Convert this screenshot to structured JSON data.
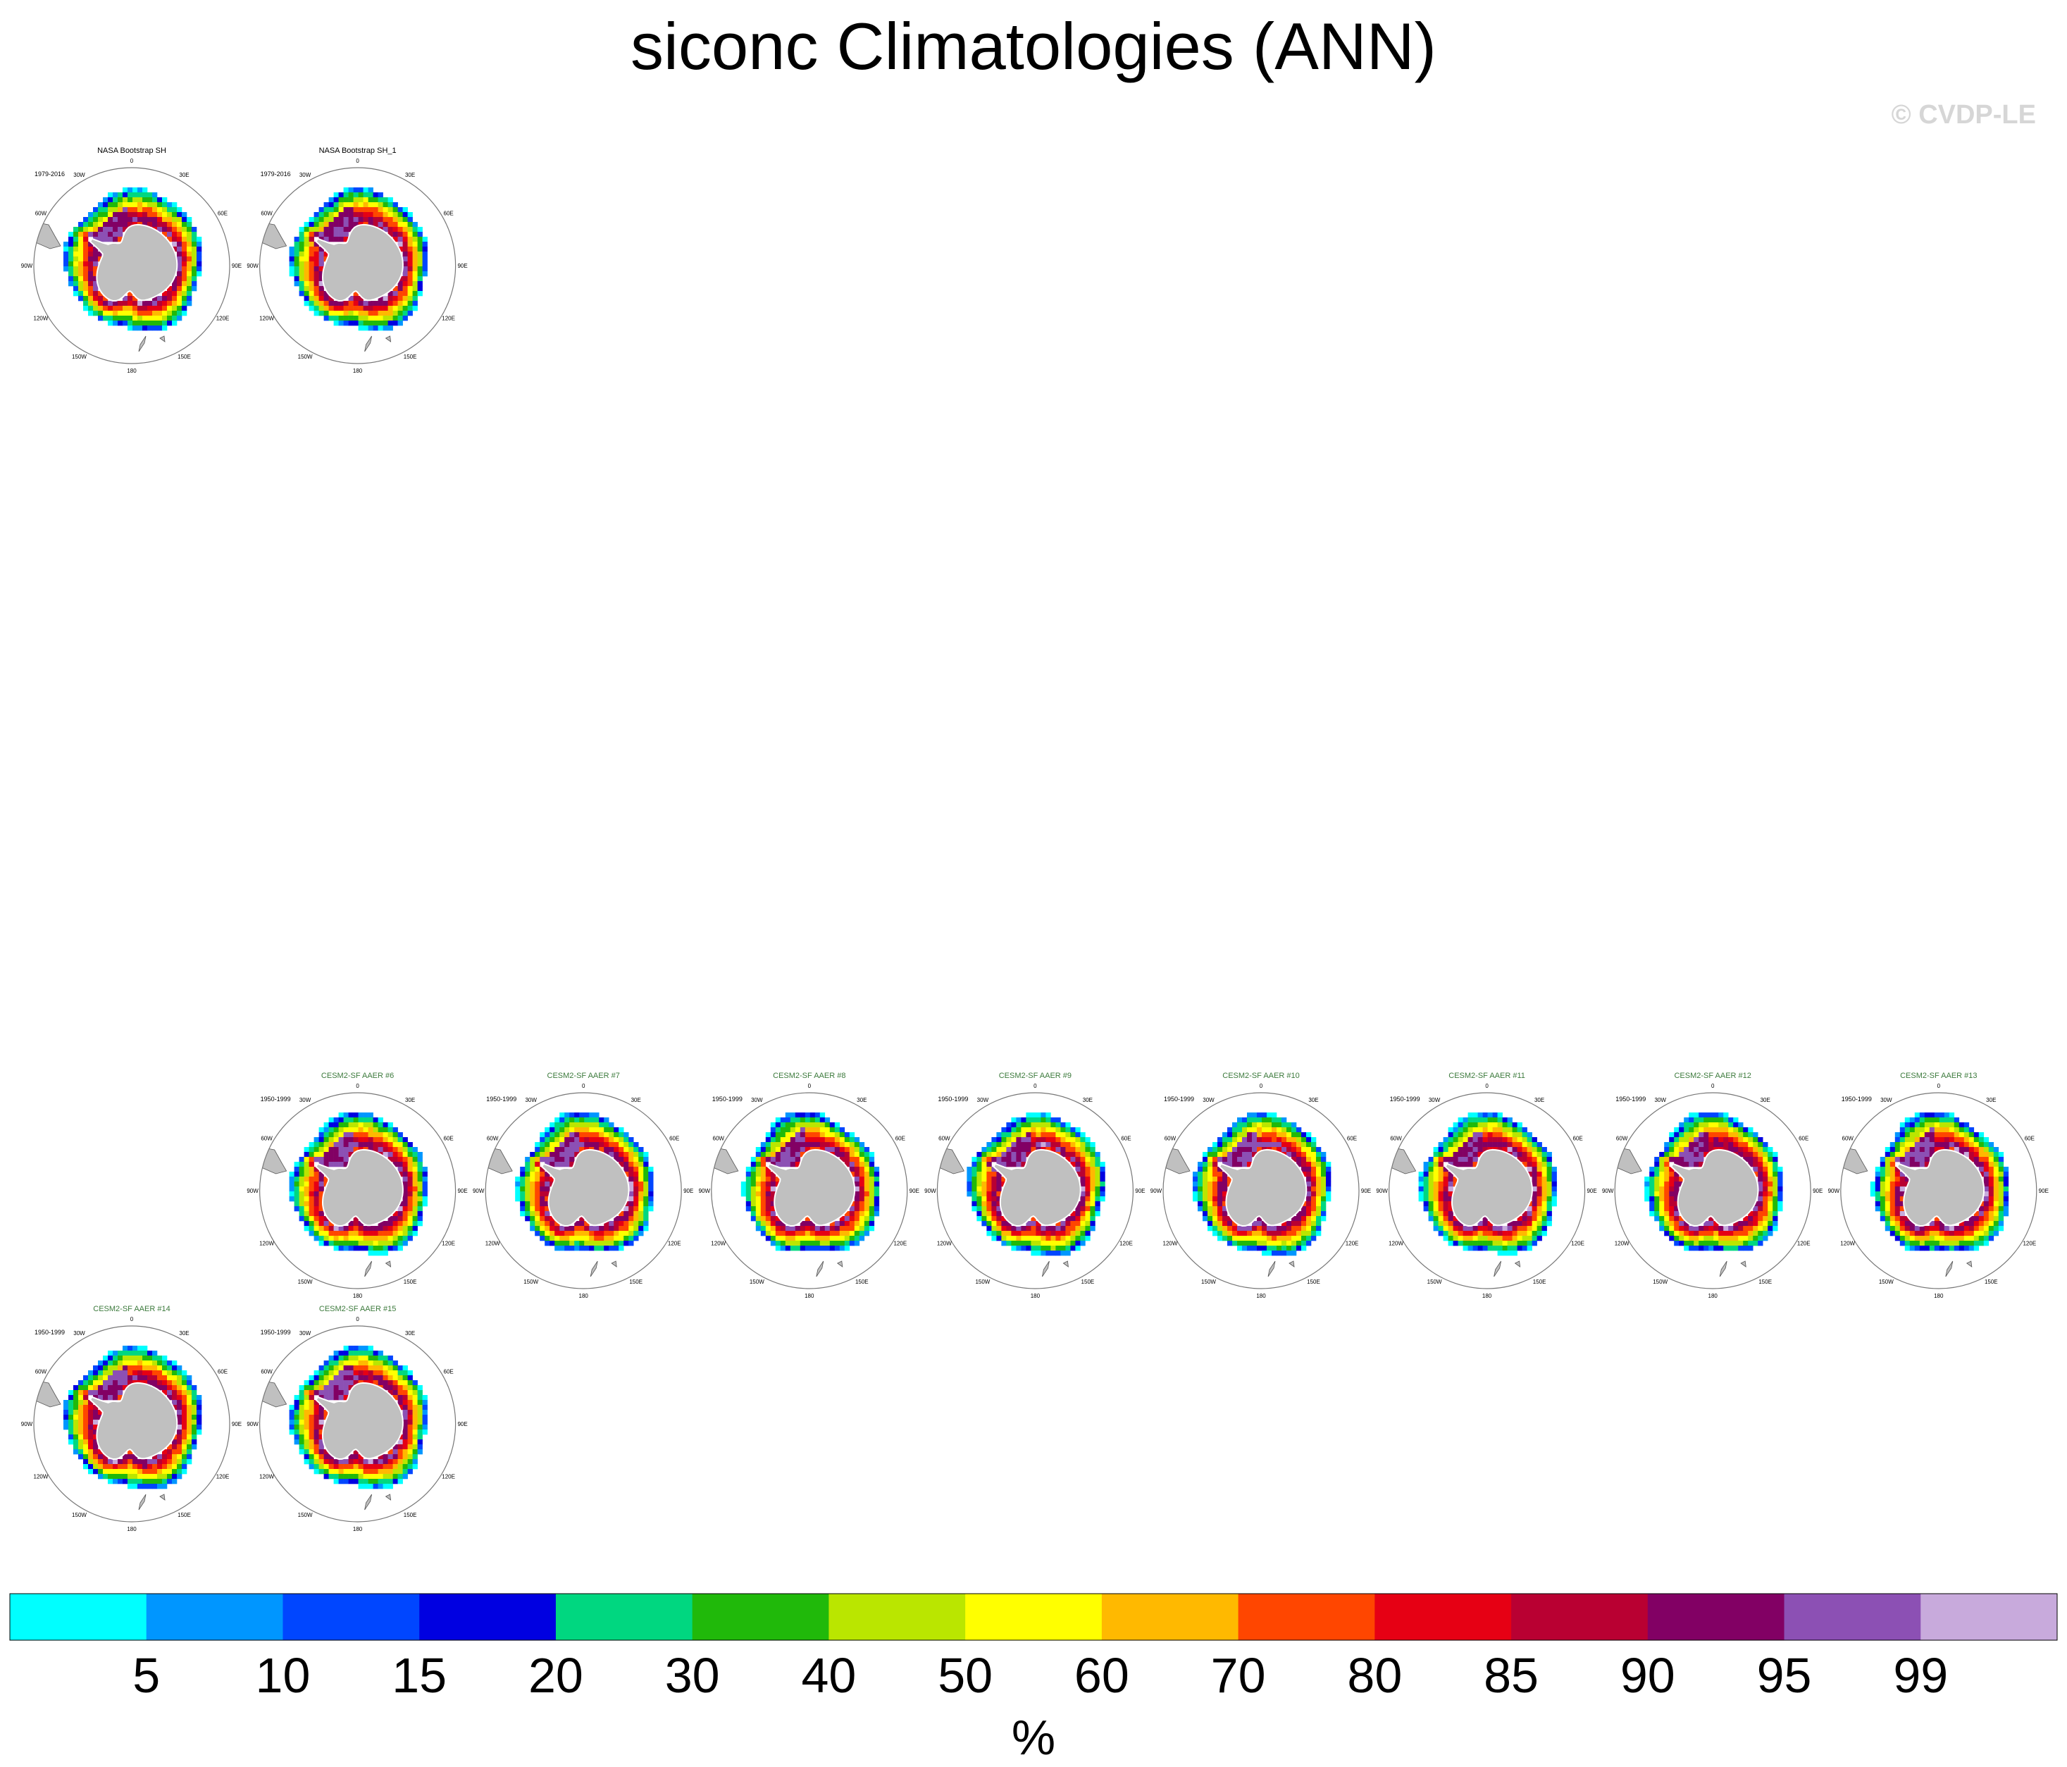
{
  "title": "siconc Climatologies (ANN)",
  "credit": "© CVDP-LE",
  "lon_labels": [
    "0",
    "30E",
    "60E",
    "90E",
    "120E",
    "150E",
    "180",
    "150W",
    "120W",
    "90W",
    "60W",
    "30W"
  ],
  "panels": [
    {
      "name": "NASA Bootstrap SH",
      "period": "1979-2016",
      "title_color": "#000000",
      "row": 0,
      "col": 0
    },
    {
      "name": "NASA Bootstrap SH_1",
      "period": "1979-2016",
      "title_color": "#000000",
      "row": 0,
      "col": 1
    },
    {
      "name": "CESM2-SF AAER #6",
      "period": "1950-1999",
      "title_color": "#3c7a3c",
      "row": 4,
      "col": 1
    },
    {
      "name": "CESM2-SF AAER #7",
      "period": "1950-1999",
      "title_color": "#3c7a3c",
      "row": 4,
      "col": 2
    },
    {
      "name": "CESM2-SF AAER #8",
      "period": "1950-1999",
      "title_color": "#3c7a3c",
      "row": 4,
      "col": 3
    },
    {
      "name": "CESM2-SF AAER #9",
      "period": "1950-1999",
      "title_color": "#3c7a3c",
      "row": 4,
      "col": 4
    },
    {
      "name": "CESM2-SF AAER #10",
      "period": "1950-1999",
      "title_color": "#3c7a3c",
      "row": 4,
      "col": 5
    },
    {
      "name": "CESM2-SF AAER #11",
      "period": "1950-1999",
      "title_color": "#3c7a3c",
      "row": 4,
      "col": 6
    },
    {
      "name": "CESM2-SF AAER #12",
      "period": "1950-1999",
      "title_color": "#3c7a3c",
      "row": 4,
      "col": 7
    },
    {
      "name": "CESM2-SF AAER #13",
      "period": "1950-1999",
      "title_color": "#3c7a3c",
      "row": 4,
      "col": 8
    },
    {
      "name": "CESM2-SF AAER #14",
      "period": "1950-1999",
      "title_color": "#3c7a3c",
      "row": 5,
      "col": 0
    },
    {
      "name": "CESM2-SF AAER #15",
      "period": "1950-1999",
      "title_color": "#3c7a3c",
      "row": 5,
      "col": 1
    }
  ],
  "chart_data": {
    "type": "heatmap",
    "title": "siconc Climatologies (ANN)",
    "variable": "siconc",
    "season": "ANN",
    "projection": "south polar stereographic",
    "colorbar": {
      "label": "%",
      "levels": [
        5,
        10,
        15,
        20,
        30,
        40,
        50,
        60,
        70,
        80,
        85,
        90,
        95,
        99
      ],
      "colors": [
        "#00ffff",
        "#0096ff",
        "#0046ff",
        "#0000e1",
        "#00d780",
        "#20b90a",
        "#bae600",
        "#ffff00",
        "#ffb900",
        "#ff4600",
        "#e60014",
        "#b90032",
        "#820064",
        "#8c50b4",
        "#c8aadc"
      ]
    }
  }
}
